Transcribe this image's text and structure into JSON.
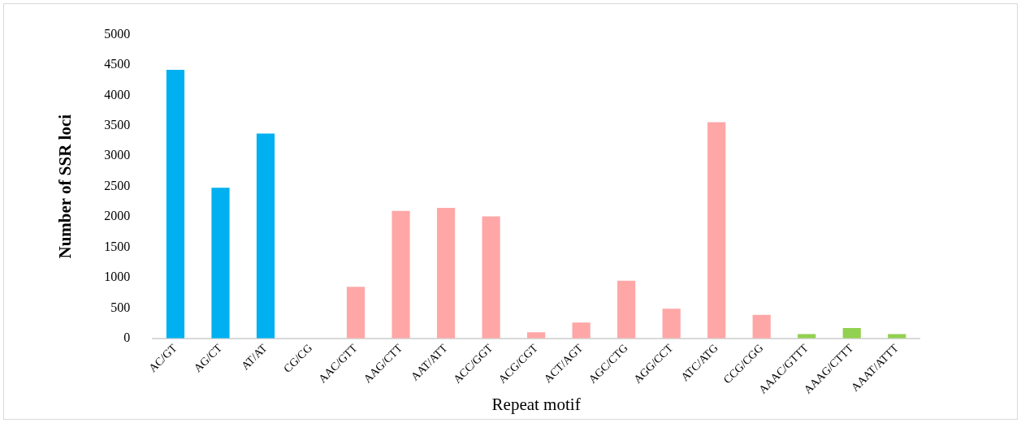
{
  "chart_data": {
    "type": "bar",
    "xlabel": "Repeat motif",
    "ylabel": "Number of SSR loci",
    "categories": [
      "AC/GT",
      "AG/CT",
      "AT/AT",
      "CG/CG",
      "AAC/GTT",
      "AAG/CTT",
      "AAT/ATT",
      "ACC/GGT",
      "ACG/CGT",
      "ACT/AGT",
      "AGC/CTG",
      "AGG/CCT",
      "ATC/ATG",
      "CCG/CGG",
      "AAAC/GTTT",
      "AAAG/CTTT",
      "AAAT/ATTT"
    ],
    "values": [
      4420,
      2480,
      3370,
      0,
      850,
      2100,
      2150,
      2010,
      100,
      260,
      950,
      490,
      3560,
      390,
      70,
      170,
      70
    ],
    "colors": [
      "#00b0f0",
      "#00b0f0",
      "#00b0f0",
      "#00b0f0",
      "#ffa7a7",
      "#ffa7a7",
      "#ffa7a7",
      "#ffa7a7",
      "#ffa7a7",
      "#ffa7a7",
      "#ffa7a7",
      "#ffa7a7",
      "#ffa7a7",
      "#ffa7a7",
      "#92d050",
      "#92d050",
      "#92d050"
    ],
    "ylim": [
      0,
      5000
    ],
    "yticks": [
      0,
      500,
      1000,
      1500,
      2000,
      2500,
      3000,
      3500,
      4000,
      4500,
      5000
    ],
    "grid": false,
    "legend": false
  }
}
